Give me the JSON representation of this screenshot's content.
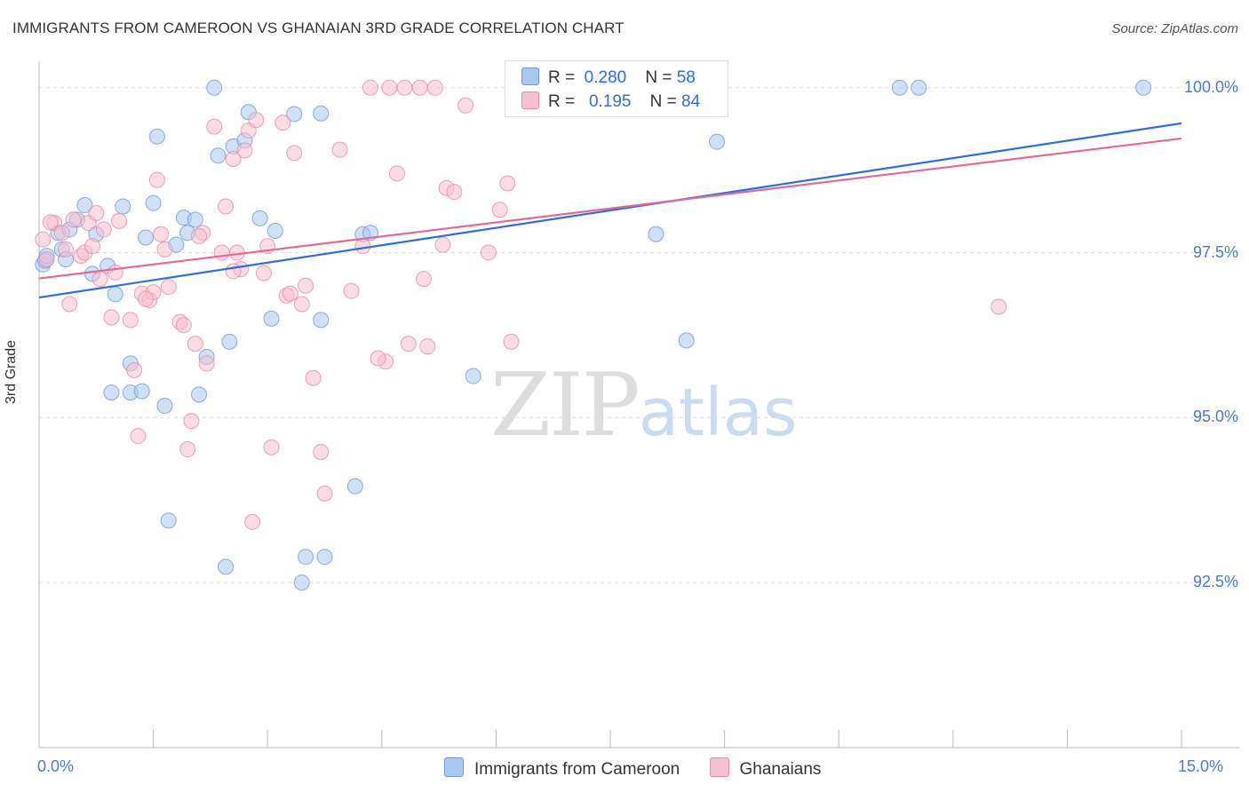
{
  "title": "IMMIGRANTS FROM CAMEROON VS GHANAIAN 3RD GRADE CORRELATION CHART",
  "source": "Source: ZipAtlas.com",
  "watermark": {
    "zip": "ZIP",
    "atlas": "atlas"
  },
  "stats": [
    {
      "r_label": "R =",
      "r": "0.280",
      "n_label": "N =",
      "n": "58",
      "color": "#A9C8F0",
      "border": "#6E9ADB"
    },
    {
      "r_label": "R =",
      "r": "0.195",
      "n_label": "N =",
      "n": "84",
      "color": "#F7BFD0",
      "border": "#E68BA8"
    }
  ],
  "legend": [
    {
      "label": "Immigrants from Cameroon",
      "color": "#A9C8F0",
      "border": "#6E9ADB"
    },
    {
      "label": "Ghanaians",
      "color": "#F7BFD0",
      "border": "#E68BA8"
    }
  ],
  "chart_data": {
    "type": "scatter",
    "title": "IMMIGRANTS FROM CAMEROON VS GHANAIAN 3RD GRADE CORRELATION CHART",
    "xlabel": "",
    "ylabel": "3rd Grade",
    "xlim": [
      0,
      15
    ],
    "ylim": [
      90.0,
      100.4
    ],
    "x_tick_labels": [
      "0.0%",
      "15.0%"
    ],
    "y_ticks": [
      92.5,
      95.0,
      97.5,
      100.0
    ],
    "y_tick_labels": [
      "92.5%",
      "95.0%",
      "97.5%",
      "100.0%"
    ],
    "grid": true,
    "series": [
      {
        "name": "Immigrants from Cameroon",
        "color": "#6E9ADB",
        "fill": "#A9C8F0",
        "trend": {
          "x": [
            0,
            15
          ],
          "y": [
            96.82,
            99.46
          ]
        },
        "points": [
          [
            0.05,
            97.32
          ],
          [
            0.08,
            97.38
          ],
          [
            0.1,
            97.45
          ],
          [
            0.25,
            97.8
          ],
          [
            0.3,
            97.55
          ],
          [
            0.35,
            97.4
          ],
          [
            0.4,
            97.85
          ],
          [
            0.5,
            98.0
          ],
          [
            0.6,
            98.22
          ],
          [
            0.7,
            97.18
          ],
          [
            0.75,
            97.78
          ],
          [
            0.9,
            97.3
          ],
          [
            1.0,
            96.87
          ],
          [
            1.1,
            98.2
          ],
          [
            1.2,
            95.38
          ],
          [
            1.35,
            95.4
          ],
          [
            1.4,
            97.73
          ],
          [
            1.5,
            98.25
          ],
          [
            1.55,
            99.26
          ],
          [
            1.65,
            95.18
          ],
          [
            1.7,
            93.44
          ],
          [
            1.8,
            97.62
          ],
          [
            1.9,
            98.03
          ],
          [
            1.95,
            97.8
          ],
          [
            2.05,
            98.0
          ],
          [
            2.1,
            95.35
          ],
          [
            2.2,
            95.92
          ],
          [
            2.3,
            100.0
          ],
          [
            2.35,
            98.97
          ],
          [
            2.45,
            92.74
          ],
          [
            2.5,
            96.15
          ],
          [
            2.55,
            99.11
          ],
          [
            2.75,
            99.63
          ],
          [
            2.7,
            99.2
          ],
          [
            2.9,
            98.02
          ],
          [
            3.05,
            96.5
          ],
          [
            3.1,
            97.83
          ],
          [
            3.35,
            99.6
          ],
          [
            3.45,
            92.5
          ],
          [
            3.5,
            92.89
          ],
          [
            3.75,
            92.89
          ],
          [
            3.7,
            96.48
          ],
          [
            3.7,
            99.61
          ],
          [
            4.15,
            93.96
          ],
          [
            4.25,
            97.78
          ],
          [
            4.35,
            97.8
          ],
          [
            5.7,
            95.63
          ],
          [
            7.2,
            100.0
          ],
          [
            7.55,
            100.0
          ],
          [
            7.85,
            100.0
          ],
          [
            8.1,
            97.78
          ],
          [
            8.5,
            96.17
          ],
          [
            8.9,
            99.18
          ],
          [
            11.3,
            100.0
          ],
          [
            11.55,
            100.0
          ],
          [
            14.5,
            100.0
          ],
          [
            1.2,
            95.82
          ],
          [
            0.95,
            95.38
          ]
        ]
      },
      {
        "name": "Ghanaians",
        "color": "#E68BA8",
        "fill": "#F7BFD0",
        "trend": {
          "x": [
            0,
            15
          ],
          "y": [
            97.11,
            99.23
          ]
        },
        "points": [
          [
            0.05,
            97.7
          ],
          [
            0.1,
            97.4
          ],
          [
            0.2,
            97.95
          ],
          [
            0.35,
            97.55
          ],
          [
            0.4,
            96.72
          ],
          [
            0.55,
            97.45
          ],
          [
            0.65,
            97.95
          ],
          [
            0.75,
            98.1
          ],
          [
            0.8,
            97.1
          ],
          [
            0.85,
            97.85
          ],
          [
            0.95,
            96.52
          ],
          [
            1.05,
            97.98
          ],
          [
            1.2,
            96.48
          ],
          [
            1.25,
            95.72
          ],
          [
            1.3,
            94.72
          ],
          [
            1.35,
            96.88
          ],
          [
            1.45,
            96.78
          ],
          [
            1.55,
            98.6
          ],
          [
            1.6,
            97.78
          ],
          [
            1.65,
            97.55
          ],
          [
            1.7,
            96.98
          ],
          [
            1.85,
            96.45
          ],
          [
            1.9,
            96.4
          ],
          [
            1.95,
            94.52
          ],
          [
            2.0,
            94.95
          ],
          [
            2.05,
            96.12
          ],
          [
            2.15,
            97.8
          ],
          [
            2.2,
            95.82
          ],
          [
            2.3,
            99.41
          ],
          [
            2.4,
            97.5
          ],
          [
            2.45,
            98.2
          ],
          [
            2.55,
            98.92
          ],
          [
            2.6,
            97.5
          ],
          [
            2.65,
            97.25
          ],
          [
            2.7,
            99.05
          ],
          [
            2.75,
            99.35
          ],
          [
            2.8,
            93.42
          ],
          [
            2.85,
            99.51
          ],
          [
            2.95,
            97.19
          ],
          [
            3.05,
            94.55
          ],
          [
            3.2,
            99.47
          ],
          [
            3.25,
            96.85
          ],
          [
            3.3,
            96.88
          ],
          [
            3.35,
            99.01
          ],
          [
            3.45,
            96.72
          ],
          [
            3.5,
            97.0
          ],
          [
            3.6,
            95.6
          ],
          [
            3.7,
            94.48
          ],
          [
            3.75,
            93.85
          ],
          [
            3.95,
            99.06
          ],
          [
            4.1,
            96.92
          ],
          [
            4.25,
            97.6
          ],
          [
            4.35,
            100.0
          ],
          [
            4.55,
            95.85
          ],
          [
            4.6,
            100.0
          ],
          [
            4.7,
            98.7
          ],
          [
            4.8,
            100.0
          ],
          [
            4.85,
            96.12
          ],
          [
            5.0,
            100.0
          ],
          [
            5.1,
            96.08
          ],
          [
            5.05,
            97.1
          ],
          [
            5.3,
            97.62
          ],
          [
            5.35,
            98.48
          ],
          [
            5.45,
            98.42
          ],
          [
            5.6,
            99.73
          ],
          [
            5.9,
            97.5
          ],
          [
            6.05,
            98.15
          ],
          [
            6.15,
            98.55
          ],
          [
            6.2,
            96.15
          ],
          [
            7.1,
            100.0
          ],
          [
            12.6,
            96.68
          ],
          [
            0.3,
            97.8
          ],
          [
            0.6,
            97.5
          ],
          [
            1.0,
            97.2
          ],
          [
            1.5,
            96.9
          ],
          [
            2.55,
            97.22
          ],
          [
            3.0,
            97.6
          ],
          [
            4.45,
            95.9
          ],
          [
            5.2,
            100.0
          ],
          [
            0.15,
            97.96
          ],
          [
            0.45,
            98.0
          ],
          [
            0.7,
            97.6
          ],
          [
            2.1,
            97.75
          ],
          [
            1.4,
            96.8
          ]
        ]
      }
    ]
  }
}
